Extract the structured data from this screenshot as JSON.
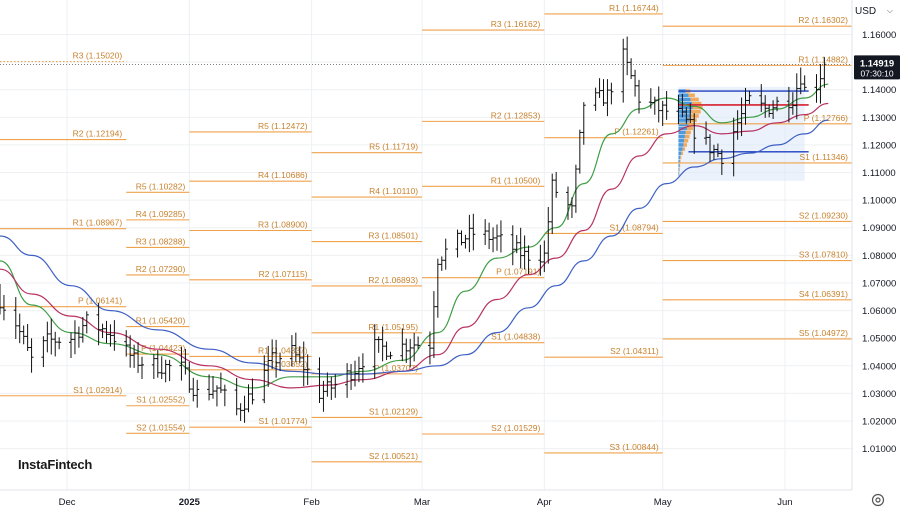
{
  "currency": {
    "label": "USD"
  },
  "brand": "InstaFintech",
  "price_tag": {
    "price": "1.14919",
    "countdown": "07:30:10"
  },
  "colors": {
    "pivot": "#f0a24b",
    "pivot_text": "#c8822e",
    "sma_fast": "#3f9d45",
    "sma_mid": "#b83262",
    "sma_slow": "#3d5fc4",
    "candle": "#111111",
    "vp_up": "#3b8fd9",
    "vp_down": "#f0a24b",
    "vp_bg": "#dbe8f7"
  },
  "chart_data": {
    "type": "ohlc",
    "y_axis": {
      "range": [
        0.995,
        1.1725
      ],
      "ticks": [
        "1.16000",
        "1.15000",
        "1.14000",
        "1.13000",
        "1.12000",
        "1.11000",
        "1.10000",
        "1.09000",
        "1.08000",
        "1.07000",
        "1.06000",
        "1.05000",
        "1.04000",
        "1.03000",
        "1.02000",
        "1.01000"
      ]
    },
    "x_axis": {
      "range": [
        "2024-11-14",
        "2025-06-18"
      ],
      "ticks": [
        {
          "label": "Dec",
          "date": "2024-12-01"
        },
        {
          "label": "2025",
          "date": "2025-01-01",
          "bold": true
        },
        {
          "label": "Feb",
          "date": "2025-02-01"
        },
        {
          "label": "Mar",
          "date": "2025-03-01"
        },
        {
          "label": "Apr",
          "date": "2025-04-01"
        },
        {
          "label": "May",
          "date": "2025-05-01"
        },
        {
          "label": "Jun",
          "date": "2025-06-01"
        }
      ]
    },
    "last_price": 1.14919,
    "close_anchors": [
      [
        "2024-11-14",
        1.064
      ],
      [
        "2024-11-18",
        1.0555
      ],
      [
        "2024-11-22",
        1.042
      ],
      [
        "2024-11-26",
        1.049
      ],
      [
        "2024-12-02",
        1.05
      ],
      [
        "2024-12-06",
        1.056
      ],
      [
        "2024-12-12",
        1.052
      ],
      [
        "2024-12-18",
        1.042
      ],
      [
        "2024-12-24",
        1.04
      ],
      [
        "2024-12-30",
        1.039
      ],
      [
        "2025-01-03",
        1.03
      ],
      [
        "2025-01-08",
        1.032
      ],
      [
        "2025-01-13",
        1.024
      ],
      [
        "2025-01-17",
        1.03
      ],
      [
        "2025-01-22",
        1.042
      ],
      [
        "2025-01-27",
        1.045
      ],
      [
        "2025-01-31",
        1.038
      ],
      [
        "2025-02-03",
        1.03
      ],
      [
        "2025-02-07",
        1.033
      ],
      [
        "2025-02-12",
        1.039
      ],
      [
        "2025-02-17",
        1.047
      ],
      [
        "2025-02-21",
        1.046
      ],
      [
        "2025-02-26",
        1.048
      ],
      [
        "2025-03-03",
        1.048
      ],
      [
        "2025-03-05",
        1.079
      ],
      [
        "2025-03-10",
        1.085
      ],
      [
        "2025-03-14",
        1.088
      ],
      [
        "2025-03-20",
        1.086
      ],
      [
        "2025-03-27",
        1.08
      ],
      [
        "2025-04-01",
        1.08
      ],
      [
        "2025-04-03",
        1.105
      ],
      [
        "2025-04-08",
        1.096
      ],
      [
        "2025-04-11",
        1.135
      ],
      [
        "2025-04-17",
        1.138
      ],
      [
        "2025-04-21",
        1.152
      ],
      [
        "2025-04-25",
        1.137
      ],
      [
        "2025-04-30",
        1.133
      ],
      [
        "2025-05-05",
        1.131
      ],
      [
        "2025-05-09",
        1.125
      ],
      [
        "2025-05-13",
        1.119
      ],
      [
        "2025-05-16",
        1.116
      ],
      [
        "2025-05-20",
        1.128
      ],
      [
        "2025-05-23",
        1.136
      ],
      [
        "2025-05-27",
        1.133
      ],
      [
        "2025-05-30",
        1.135
      ],
      [
        "2025-06-03",
        1.137
      ],
      [
        "2025-06-05",
        1.145
      ],
      [
        "2025-06-06",
        1.14
      ],
      [
        "2025-06-09",
        1.142
      ],
      [
        "2025-06-11",
        1.149
      ]
    ],
    "moving_averages": [
      {
        "key": "sma_fast",
        "points": [
          [
            "2024-11-14",
            1.078
          ],
          [
            "2024-11-22",
            1.062
          ],
          [
            "2024-12-02",
            1.052
          ],
          [
            "2024-12-12",
            1.048
          ],
          [
            "2024-12-24",
            1.044
          ],
          [
            "2025-01-06",
            1.036
          ],
          [
            "2025-01-17",
            1.032
          ],
          [
            "2025-01-27",
            1.036
          ],
          [
            "2025-02-05",
            1.036
          ],
          [
            "2025-02-14",
            1.038
          ],
          [
            "2025-02-24",
            1.042
          ],
          [
            "2025-03-05",
            1.052
          ],
          [
            "2025-03-12",
            1.067
          ],
          [
            "2025-03-20",
            1.079
          ],
          [
            "2025-03-28",
            1.083
          ],
          [
            "2025-04-04",
            1.09
          ],
          [
            "2025-04-11",
            1.106
          ],
          [
            "2025-04-18",
            1.124
          ],
          [
            "2025-04-25",
            1.133
          ],
          [
            "2025-05-02",
            1.137
          ],
          [
            "2025-05-09",
            1.134
          ],
          [
            "2025-05-16",
            1.128
          ],
          [
            "2025-05-23",
            1.13
          ],
          [
            "2025-05-30",
            1.133
          ],
          [
            "2025-06-06",
            1.137
          ],
          [
            "2025-06-12",
            1.142
          ]
        ]
      },
      {
        "key": "sma_mid",
        "points": [
          [
            "2024-11-14",
            1.075
          ],
          [
            "2024-11-22",
            1.066
          ],
          [
            "2024-12-02",
            1.058
          ],
          [
            "2024-12-12",
            1.052
          ],
          [
            "2024-12-24",
            1.046
          ],
          [
            "2025-01-06",
            1.04
          ],
          [
            "2025-01-17",
            1.035
          ],
          [
            "2025-01-27",
            1.032
          ],
          [
            "2025-02-05",
            1.033
          ],
          [
            "2025-02-14",
            1.035
          ],
          [
            "2025-02-24",
            1.038
          ],
          [
            "2025-03-05",
            1.044
          ],
          [
            "2025-03-12",
            1.054
          ],
          [
            "2025-03-20",
            1.064
          ],
          [
            "2025-03-28",
            1.073
          ],
          [
            "2025-04-04",
            1.079
          ],
          [
            "2025-04-11",
            1.089
          ],
          [
            "2025-04-18",
            1.104
          ],
          [
            "2025-04-25",
            1.116
          ],
          [
            "2025-05-02",
            1.124
          ],
          [
            "2025-05-09",
            1.127
          ],
          [
            "2025-05-16",
            1.124
          ],
          [
            "2025-05-23",
            1.125
          ],
          [
            "2025-05-30",
            1.128
          ],
          [
            "2025-06-06",
            1.131
          ],
          [
            "2025-06-12",
            1.135
          ]
        ]
      },
      {
        "key": "sma_slow",
        "points": [
          [
            "2024-11-14",
            1.087
          ],
          [
            "2024-11-22",
            1.08
          ],
          [
            "2024-12-02",
            1.069
          ],
          [
            "2024-12-12",
            1.06
          ],
          [
            "2024-12-24",
            1.053
          ],
          [
            "2025-01-06",
            1.046
          ],
          [
            "2025-01-17",
            1.041
          ],
          [
            "2025-01-27",
            1.038
          ],
          [
            "2025-02-05",
            1.037
          ],
          [
            "2025-02-14",
            1.037
          ],
          [
            "2025-02-24",
            1.038
          ],
          [
            "2025-03-05",
            1.04
          ],
          [
            "2025-03-12",
            1.044
          ],
          [
            "2025-03-20",
            1.052
          ],
          [
            "2025-03-28",
            1.061
          ],
          [
            "2025-04-04",
            1.069
          ],
          [
            "2025-04-11",
            1.078
          ],
          [
            "2025-04-18",
            1.087
          ],
          [
            "2025-04-25",
            1.097
          ],
          [
            "2025-05-02",
            1.106
          ],
          [
            "2025-05-09",
            1.112
          ],
          [
            "2025-05-16",
            1.115
          ],
          [
            "2025-05-23",
            1.117
          ],
          [
            "2025-05-30",
            1.12
          ],
          [
            "2025-06-06",
            1.124
          ],
          [
            "2025-06-12",
            1.129
          ]
        ]
      }
    ],
    "pivot_levels": [
      {
        "label": "R3 (1.15020)",
        "value": 1.1502,
        "from": "2024-11-14",
        "to": "2024-12-16",
        "dashed": true
      },
      {
        "label": "R2 (1.12194)",
        "value": 1.12194,
        "from": "2024-11-14",
        "to": "2024-12-16"
      },
      {
        "label": "R1 (1.08967)",
        "value": 1.08967,
        "from": "2024-11-14",
        "to": "2024-12-16"
      },
      {
        "label": "P (1.06141)",
        "value": 1.06141,
        "from": "2024-11-14",
        "to": "2024-12-16"
      },
      {
        "label": "S1 (1.02914)",
        "value": 1.02914,
        "from": "2024-11-14",
        "to": "2024-12-16"
      },
      {
        "label": "R5 (1.10282)",
        "value": 1.10282,
        "from": "2024-12-16",
        "to": "2025-01-01"
      },
      {
        "label": "R4 (1.09285)",
        "value": 1.09285,
        "from": "2024-12-16",
        "to": "2025-01-01"
      },
      {
        "label": "R3 (1.08288)",
        "value": 1.08288,
        "from": "2024-12-16",
        "to": "2025-01-01"
      },
      {
        "label": "R2 (1.07290)",
        "value": 1.0729,
        "from": "2024-12-16",
        "to": "2025-01-01"
      },
      {
        "label": "R1 (1.05420)",
        "value": 1.0542,
        "from": "2024-12-16",
        "to": "2025-01-01"
      },
      {
        "label": "P (1.04423)",
        "value": 1.04423,
        "from": "2024-12-16",
        "to": "2025-01-01"
      },
      {
        "label": "S1 (1.02552)",
        "value": 1.02552,
        "from": "2024-12-16",
        "to": "2025-01-01"
      },
      {
        "label": "S2 (1.01554)",
        "value": 1.01554,
        "from": "2024-12-16",
        "to": "2025-01-01"
      },
      {
        "label": "R5 (1.12472)",
        "value": 1.12472,
        "from": "2025-01-01",
        "to": "2025-02-01"
      },
      {
        "label": "R4 (1.10686)",
        "value": 1.10686,
        "from": "2025-01-01",
        "to": "2025-02-01"
      },
      {
        "label": "R3 (1.08900)",
        "value": 1.089,
        "from": "2025-01-01",
        "to": "2025-02-01"
      },
      {
        "label": "R2 (1.07115)",
        "value": 1.07115,
        "from": "2025-01-01",
        "to": "2025-02-01"
      },
      {
        "label": "R1 (1.04337)",
        "value": 1.04337,
        "from": "2025-01-01",
        "to": "2025-02-01"
      },
      {
        "label": "P (1.03852)",
        "value": 1.03852,
        "from": "2025-01-01",
        "to": "2025-02-01"
      },
      {
        "label": "S1 (1.01774)",
        "value": 1.01774,
        "from": "2025-01-01",
        "to": "2025-02-01"
      },
      {
        "label": "R5 (1.11719)",
        "value": 1.11719,
        "from": "2025-02-01",
        "to": "2025-03-01"
      },
      {
        "label": "R4 (1.10110)",
        "value": 1.1011,
        "from": "2025-02-01",
        "to": "2025-03-01"
      },
      {
        "label": "R3 (1.08501)",
        "value": 1.08501,
        "from": "2025-02-01",
        "to": "2025-03-01"
      },
      {
        "label": "R2 (1.06893)",
        "value": 1.06893,
        "from": "2025-02-01",
        "to": "2025-03-01"
      },
      {
        "label": "R1 (1.05195)",
        "value": 1.05195,
        "from": "2025-02-01",
        "to": "2025-03-01"
      },
      {
        "label": "P (1.03707)",
        "value": 1.03707,
        "from": "2025-02-01",
        "to": "2025-03-01"
      },
      {
        "label": "S1 (1.02129)",
        "value": 1.02129,
        "from": "2025-02-01",
        "to": "2025-03-01"
      },
      {
        "label": "S2 (1.00521)",
        "value": 1.00521,
        "from": "2025-02-01",
        "to": "2025-03-01"
      },
      {
        "label": "R3 (1.16162)",
        "value": 1.16162,
        "from": "2025-03-01",
        "to": "2025-04-01"
      },
      {
        "label": "R2 (1.12853)",
        "value": 1.12853,
        "from": "2025-03-01",
        "to": "2025-04-01"
      },
      {
        "label": "R1 (1.10500)",
        "value": 1.105,
        "from": "2025-03-01",
        "to": "2025-04-01"
      },
      {
        "label": "P (1.07191)",
        "value": 1.07191,
        "from": "2025-03-01",
        "to": "2025-04-01"
      },
      {
        "label": "S1 (1.04838)",
        "value": 1.04838,
        "from": "2025-03-01",
        "to": "2025-04-01"
      },
      {
        "label": "S2 (1.01529)",
        "value": 1.01529,
        "from": "2025-03-01",
        "to": "2025-04-01"
      },
      {
        "label": "R1 (1.16744)",
        "value": 1.16744,
        "from": "2025-04-01",
        "to": "2025-05-01"
      },
      {
        "label": "P (1.12261)",
        "value": 1.12261,
        "from": "2025-04-01",
        "to": "2025-05-01"
      },
      {
        "label": "S1 (1.08794)",
        "value": 1.08794,
        "from": "2025-04-01",
        "to": "2025-05-01"
      },
      {
        "label": "S2 (1.04311)",
        "value": 1.04311,
        "from": "2025-04-01",
        "to": "2025-05-01"
      },
      {
        "label": "S3 (1.00844)",
        "value": 1.00844,
        "from": "2025-04-01",
        "to": "2025-05-01"
      },
      {
        "label": "R2 (1.16302)",
        "value": 1.16302,
        "from": "2025-05-01",
        "to": "2025-06-18"
      },
      {
        "label": "R1 (1.14882)",
        "value": 1.14882,
        "from": "2025-05-01",
        "to": "2025-06-18"
      },
      {
        "label": "P (1.12766)",
        "value": 1.12766,
        "from": "2025-05-01",
        "to": "2025-06-18"
      },
      {
        "label": "S1 (1.11346)",
        "value": 1.11346,
        "from": "2025-05-01",
        "to": "2025-06-18"
      },
      {
        "label": "S2 (1.09230)",
        "value": 1.0923,
        "from": "2025-05-01",
        "to": "2025-06-18"
      },
      {
        "label": "S3 (1.07810)",
        "value": 1.0781,
        "from": "2025-05-01",
        "to": "2025-06-18"
      },
      {
        "label": "S4 (1.06391)",
        "value": 1.06391,
        "from": "2025-05-01",
        "to": "2025-06-18"
      },
      {
        "label": "S5 (1.04972)",
        "value": 1.04972,
        "from": "2025-05-01",
        "to": "2025-06-18"
      }
    ],
    "volume_profile": {
      "range_x": [
        "2025-05-05",
        "2025-06-06"
      ],
      "range_y": [
        1.107,
        1.141
      ],
      "poc": 1.1345,
      "value_area_high": 1.1395,
      "value_area_low": 1.1175,
      "rows": [
        [
          1.1395,
          0.5,
          0.4
        ],
        [
          1.138,
          0.7,
          0.55
        ],
        [
          1.1365,
          0.85,
          0.7
        ],
        [
          1.135,
          0.95,
          0.8
        ],
        [
          1.1335,
          1.0,
          0.85
        ],
        [
          1.132,
          0.9,
          0.8
        ],
        [
          1.1305,
          0.85,
          0.7
        ],
        [
          1.129,
          0.75,
          0.65
        ],
        [
          1.1275,
          0.7,
          0.55
        ],
        [
          1.126,
          0.6,
          0.5
        ],
        [
          1.1245,
          0.5,
          0.45
        ],
        [
          1.123,
          0.45,
          0.4
        ],
        [
          1.1215,
          0.4,
          0.35
        ],
        [
          1.12,
          0.35,
          0.3
        ],
        [
          1.1185,
          0.3,
          0.2
        ],
        [
          1.117,
          0.2,
          0.15
        ],
        [
          1.1155,
          0.12,
          0.1
        ],
        [
          1.114,
          0.1,
          0.06
        ],
        [
          1.1125,
          0.08,
          0.05
        ],
        [
          1.111,
          0.06,
          0.04
        ],
        [
          1.1095,
          0.05,
          0.03
        ]
      ]
    }
  }
}
